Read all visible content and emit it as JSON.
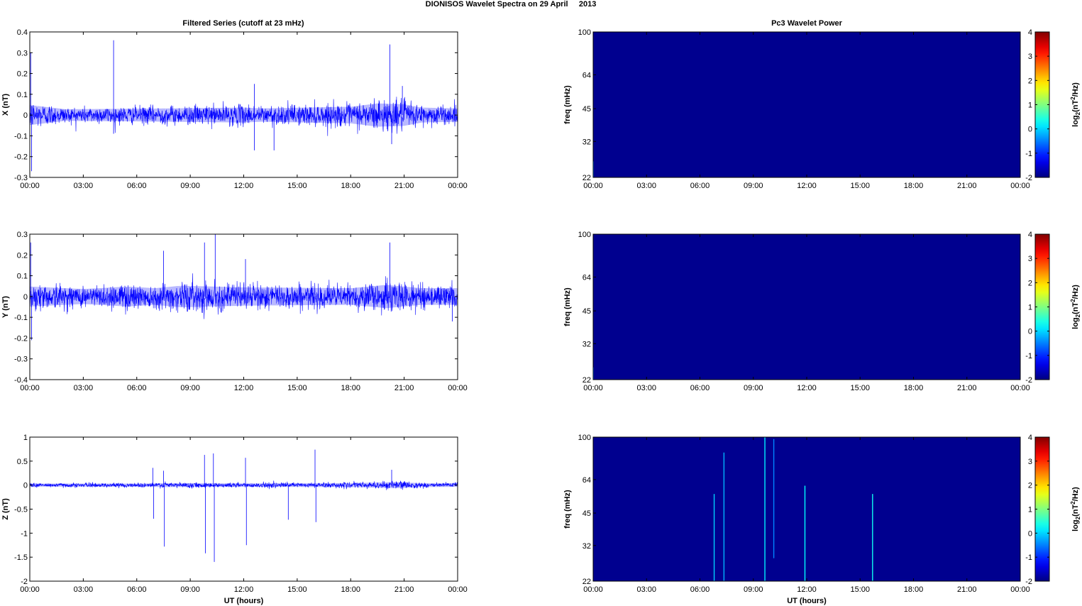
{
  "figure": {
    "title": "DIONISOS Wavelet Spectra on 29 April     2013",
    "left_column_title": "Filtered Series (cutoff at 23 mHz)",
    "right_column_title": "Pc3 Wavelet Power"
  },
  "time_ticks": [
    "00:00",
    "03:00",
    "06:00",
    "09:00",
    "12:00",
    "15:00",
    "18:00",
    "21:00",
    "00:00"
  ],
  "xlabel": "UT (hours)",
  "colors": {
    "trace": "#0000ff",
    "spectrogram_background": "#00008f",
    "axes": "#000000"
  },
  "colorbar": {
    "label_prefix": "log",
    "label_sub": "2",
    "label_mid": "(nT",
    "label_sup": "2",
    "label_suffix": "/Hz)",
    "ticks": [
      "4",
      "3",
      "2",
      "1",
      "0",
      "-1",
      "-2"
    ],
    "range": [
      -2,
      4
    ],
    "colormap": "jet"
  },
  "chart_data": [
    {
      "type": "line",
      "title": "Filtered Series (cutoff at 23 mHz)",
      "ylabel": "X (nT)",
      "xlabel": "",
      "ylim": [
        -0.3,
        0.4
      ],
      "yticks": [
        "0.4",
        "0.3",
        "0.2",
        "0.1",
        "0",
        "-0.1",
        "-0.2",
        "-0.3"
      ],
      "xlim_hours": [
        0,
        24
      ],
      "noise_amplitude": 0.035,
      "envelope": [
        [
          0,
          0.06
        ],
        [
          2,
          0.035
        ],
        [
          6,
          0.038
        ],
        [
          12,
          0.045
        ],
        [
          13,
          0.04
        ],
        [
          18,
          0.05
        ],
        [
          19.5,
          0.07
        ],
        [
          21,
          0.065
        ],
        [
          22,
          0.045
        ],
        [
          24,
          0.04
        ]
      ],
      "spikes": [
        [
          0.05,
          0.3
        ],
        [
          0.1,
          -0.27
        ],
        [
          4.7,
          0.36
        ],
        [
          4.7,
          -0.09
        ],
        [
          12.6,
          0.15
        ],
        [
          12.6,
          -0.17
        ],
        [
          13.7,
          -0.17
        ],
        [
          20.2,
          0.34
        ],
        [
          20.3,
          -0.14
        ],
        [
          20.9,
          0.14
        ]
      ],
      "series": [
        {
          "values": [
            0.0,
            0.02,
            -0.01,
            0.01,
            -0.02,
            0.0
          ]
        }
      ]
    },
    {
      "type": "line",
      "ylabel": "Y (nT)",
      "xlabel": "",
      "ylim": [
        -0.4,
        0.3
      ],
      "yticks": [
        "0.3",
        "0.2",
        "0.1",
        "0",
        "-0.1",
        "-0.2",
        "-0.3",
        "-0.4"
      ],
      "xlim_hours": [
        0,
        24
      ],
      "noise_amplitude": 0.045,
      "envelope": [
        [
          0,
          0.06
        ],
        [
          3,
          0.045
        ],
        [
          5.5,
          0.06
        ],
        [
          7,
          0.05
        ],
        [
          8.5,
          0.065
        ],
        [
          12,
          0.055
        ],
        [
          18,
          0.05
        ],
        [
          20,
          0.07
        ],
        [
          22,
          0.05
        ],
        [
          24,
          0.05
        ]
      ],
      "spikes": [
        [
          0.05,
          0.26
        ],
        [
          0.1,
          -0.21
        ],
        [
          7.5,
          0.22
        ],
        [
          9.8,
          0.26
        ],
        [
          10.4,
          0.3
        ],
        [
          12.1,
          0.18
        ],
        [
          20.2,
          0.26
        ],
        [
          23.7,
          -0.12
        ]
      ],
      "series": [
        {
          "values": [
            0.0,
            0.02,
            -0.02,
            0.01,
            -0.01,
            0.0
          ]
        }
      ]
    },
    {
      "type": "line",
      "ylabel": "Z (nT)",
      "xlabel": "UT (hours)",
      "ylim": [
        -2,
        1
      ],
      "yticks": [
        "1",
        "0.5",
        "0",
        "-0.5",
        "-1",
        "-1.5",
        "-2"
      ],
      "xlim_hours": [
        0,
        24
      ],
      "noise_amplitude": 0.035,
      "envelope": [
        [
          0,
          0.04
        ],
        [
          6,
          0.04
        ],
        [
          7.5,
          0.05
        ],
        [
          12,
          0.045
        ],
        [
          18,
          0.05
        ],
        [
          20.5,
          0.08
        ],
        [
          22,
          0.05
        ],
        [
          24,
          0.045
        ]
      ],
      "spikes": [
        [
          6.9,
          0.36
        ],
        [
          6.95,
          -0.7
        ],
        [
          7.5,
          0.3
        ],
        [
          7.55,
          -1.28
        ],
        [
          9.8,
          0.63
        ],
        [
          9.85,
          -1.42
        ],
        [
          10.3,
          0.66
        ],
        [
          10.35,
          -1.6
        ],
        [
          12.1,
          0.57
        ],
        [
          12.15,
          -1.25
        ],
        [
          14.5,
          -0.72
        ],
        [
          16.0,
          0.74
        ],
        [
          16.05,
          -0.77
        ],
        [
          20.3,
          0.32
        ]
      ],
      "series": [
        {
          "values": [
            0.0,
            0.01,
            -0.01,
            0.01,
            0.0
          ]
        }
      ]
    },
    {
      "type": "heatmap",
      "title": "Pc3 Wavelet Power",
      "ylabel": "freq (mHz)",
      "xlabel": "",
      "y_scale": "log",
      "ylim": [
        22,
        100
      ],
      "yticks": [
        "100",
        "64",
        "45",
        "32",
        "22"
      ],
      "xlim_hours": [
        0,
        24
      ],
      "zlim": [
        -2,
        4
      ],
      "background_value": -2,
      "streaks": [
        [
          0.01,
          22,
          26,
          -1.2
        ]
      ]
    },
    {
      "type": "heatmap",
      "ylabel": "freq (mHz)",
      "xlabel": "",
      "y_scale": "log",
      "ylim": [
        22,
        100
      ],
      "yticks": [
        "100",
        "64",
        "45",
        "32",
        "22"
      ],
      "xlim_hours": [
        0,
        24
      ],
      "zlim": [
        -2,
        4
      ],
      "background_value": -2,
      "streaks": [
        [
          0.01,
          22,
          25,
          -1.3
        ]
      ]
    },
    {
      "type": "heatmap",
      "ylabel": "freq (mHz)",
      "xlabel": "UT (hours)",
      "y_scale": "log",
      "ylim": [
        22,
        100
      ],
      "yticks": [
        "100",
        "64",
        "45",
        "32",
        "22"
      ],
      "xlim_hours": [
        0,
        24
      ],
      "zlim": [
        -2,
        4
      ],
      "background_value": -2,
      "streaks": [
        [
          6.8,
          22,
          55,
          -0.6
        ],
        [
          7.35,
          22,
          85,
          -0.8
        ],
        [
          9.65,
          22,
          100,
          -0.4
        ],
        [
          10.15,
          28,
          98,
          -1.1
        ],
        [
          11.9,
          22,
          60,
          -0.3
        ],
        [
          15.7,
          22,
          55,
          -0.2
        ]
      ]
    }
  ]
}
